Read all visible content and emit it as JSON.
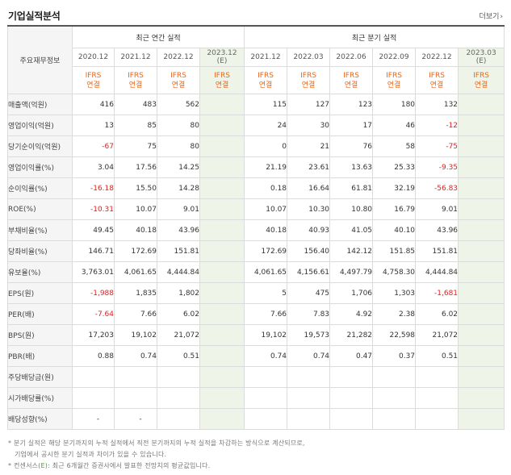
{
  "title": "기업실적분석",
  "more_label": "더보기",
  "more_icon": "chevron-right-icon",
  "corner_label": "주요재무정보",
  "groups": {
    "annual": "최근 연간 실적",
    "quarterly": "최근 분기 실적"
  },
  "annual_periods": [
    {
      "label": "2020.12",
      "estimate": false,
      "basis": "IFRS",
      "type": "연결"
    },
    {
      "label": "2021.12",
      "estimate": false,
      "basis": "IFRS",
      "type": "연결"
    },
    {
      "label": "2022.12",
      "estimate": false,
      "basis": "IFRS",
      "type": "연결"
    },
    {
      "label": "2023.12",
      "suffix": "(E)",
      "estimate": true,
      "basis": "IFRS",
      "type": "연결"
    }
  ],
  "quarterly_periods": [
    {
      "label": "2021.12",
      "estimate": false,
      "basis": "IFRS",
      "type": "연결"
    },
    {
      "label": "2022.03",
      "estimate": false,
      "basis": "IFRS",
      "type": "연결"
    },
    {
      "label": "2022.06",
      "estimate": false,
      "basis": "IFRS",
      "type": "연결"
    },
    {
      "label": "2022.09",
      "estimate": false,
      "basis": "IFRS",
      "type": "연결"
    },
    {
      "label": "2022.12",
      "estimate": false,
      "basis": "IFRS",
      "type": "연결"
    },
    {
      "label": "2023.03",
      "suffix": "(E)",
      "estimate": true,
      "basis": "IFRS",
      "type": "연결"
    }
  ],
  "rows": [
    {
      "label": "매출액(억원)",
      "annual": [
        "416",
        "483",
        "562",
        ""
      ],
      "quarterly": [
        "115",
        "127",
        "123",
        "180",
        "132",
        ""
      ]
    },
    {
      "label": "영업이익(억원)",
      "annual": [
        "13",
        "85",
        "80",
        ""
      ],
      "quarterly": [
        "24",
        "30",
        "17",
        "46",
        "-12",
        ""
      ]
    },
    {
      "label": "당기순이익(억원)",
      "annual": [
        "-67",
        "75",
        "80",
        ""
      ],
      "quarterly": [
        "0",
        "21",
        "76",
        "58",
        "-75",
        ""
      ]
    },
    {
      "label": "영업이익률(%)",
      "annual": [
        "3.04",
        "17.56",
        "14.25",
        ""
      ],
      "quarterly": [
        "21.19",
        "23.61",
        "13.63",
        "25.33",
        "-9.35",
        ""
      ]
    },
    {
      "label": "순이익률(%)",
      "annual": [
        "-16.18",
        "15.50",
        "14.28",
        ""
      ],
      "quarterly": [
        "0.18",
        "16.64",
        "61.81",
        "32.19",
        "-56.83",
        ""
      ]
    },
    {
      "label": "ROE(%)",
      "annual": [
        "-10.31",
        "10.07",
        "9.01",
        ""
      ],
      "quarterly": [
        "10.07",
        "10.30",
        "10.80",
        "16.79",
        "9.01",
        ""
      ]
    },
    {
      "label": "부채비율(%)",
      "annual": [
        "49.45",
        "40.18",
        "43.96",
        ""
      ],
      "quarterly": [
        "40.18",
        "40.93",
        "41.05",
        "40.10",
        "43.96",
        ""
      ]
    },
    {
      "label": "당좌비율(%)",
      "annual": [
        "146.71",
        "172.69",
        "151.81",
        ""
      ],
      "quarterly": [
        "172.69",
        "156.40",
        "142.12",
        "151.85",
        "151.81",
        ""
      ]
    },
    {
      "label": "유보율(%)",
      "annual": [
        "3,763.01",
        "4,061.65",
        "4,444.84",
        ""
      ],
      "quarterly": [
        "4,061.65",
        "4,156.61",
        "4,497.79",
        "4,758.30",
        "4,444.84",
        ""
      ]
    },
    {
      "label": "EPS(원)",
      "annual": [
        "-1,988",
        "1,835",
        "1,802",
        ""
      ],
      "quarterly": [
        "5",
        "475",
        "1,706",
        "1,303",
        "-1,681",
        ""
      ]
    },
    {
      "label": "PER(배)",
      "annual": [
        "-7.64",
        "7.66",
        "6.02",
        ""
      ],
      "quarterly": [
        "7.66",
        "7.83",
        "4.92",
        "2.38",
        "6.02",
        ""
      ]
    },
    {
      "label": "BPS(원)",
      "annual": [
        "17,203",
        "19,102",
        "21,072",
        ""
      ],
      "quarterly": [
        "19,102",
        "19,573",
        "21,282",
        "22,598",
        "21,072",
        ""
      ]
    },
    {
      "label": "PBR(배)",
      "annual": [
        "0.88",
        "0.74",
        "0.51",
        ""
      ],
      "quarterly": [
        "0.74",
        "0.74",
        "0.47",
        "0.37",
        "0.51",
        ""
      ]
    },
    {
      "label": "주당배당금(원)",
      "annual": [
        "",
        "",
        "",
        ""
      ],
      "quarterly": [
        "",
        "",
        "",
        "",
        "",
        ""
      ]
    },
    {
      "label": "시가배당률(%)",
      "annual": [
        "",
        "",
        "",
        ""
      ],
      "quarterly": [
        "",
        "",
        "",
        "",
        "",
        ""
      ]
    },
    {
      "label": "배당성향(%)",
      "annual": [
        "-",
        "-",
        "",
        ""
      ],
      "quarterly": [
        "",
        "",
        "",
        "",
        "",
        ""
      ]
    }
  ],
  "notes": {
    "line1": "* 분기 실적은 해당 분기까지의 누적 실적에서 직전 분기까지의 누적 실적을 차감하는 방식으로 계산되므로,",
    "line2": "기업에서 공시한 분기 실적과 차이가 있을 수 있습니다.",
    "line3_prefix": "* 컨센서스(",
    "line3_e": "E",
    "line3_suffix": "): 최근 6개월간 증권사에서 발표한 전망치의 평균값입니다."
  },
  "colors": {
    "negative": "#e02020",
    "ifrs": "#e8661b",
    "estimate_bg": "#eef5e8"
  }
}
